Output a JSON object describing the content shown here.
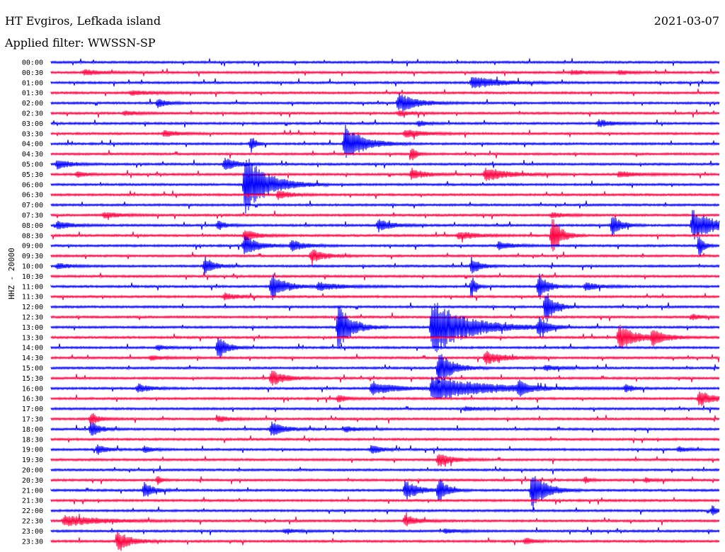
{
  "header": {
    "station": "HT Evgiros, Lefkada island",
    "date": "2021-03-07",
    "filter": "Applied filter: WWSSN-SP",
    "channel": "HHZ - 20000"
  },
  "colors": {
    "even_row": "#0000ff",
    "odd_row": "#ff0040",
    "background": "#ffffff"
  },
  "chart_data": {
    "type": "line",
    "title": "HT Evgiros, Lefkada island",
    "subtitle": "Applied filter: WWSSN-SP",
    "ylabel": "HHZ - 20000",
    "row_labels": [
      "00:00",
      "00:30",
      "01:00",
      "01:30",
      "02:00",
      "02:30",
      "03:00",
      "03:30",
      "04:00",
      "04:30",
      "05:00",
      "05:30",
      "06:00",
      "06:30",
      "07:00",
      "07:30",
      "08:00",
      "08:30",
      "09:00",
      "09:30",
      "10:00",
      "10:30",
      "11:00",
      "11:30",
      "12:00",
      "12:30",
      "13:00",
      "13:30",
      "14:00",
      "14:30",
      "15:00",
      "15:30",
      "16:00",
      "16:30",
      "17:00",
      "17:30",
      "18:00",
      "18:30",
      "19:00",
      "19:30",
      "20:00",
      "20:30",
      "21:00",
      "21:30",
      "22:00",
      "22:30",
      "23:00",
      "23:30"
    ],
    "x_range_minutes": [
      0,
      30
    ],
    "series_colors_alternating": [
      "blue",
      "red"
    ],
    "events": [
      {
        "row": 1,
        "t": 0.05,
        "amp": 4,
        "dur": 0.04
      },
      {
        "row": 1,
        "t": 0.78,
        "amp": 3,
        "dur": 0.04
      },
      {
        "row": 1,
        "t": 0.85,
        "amp": 3,
        "dur": 0.03
      },
      {
        "row": 2,
        "t": 0.63,
        "amp": 9,
        "dur": 0.06
      },
      {
        "row": 3,
        "t": 0.12,
        "amp": 3,
        "dur": 0.05
      },
      {
        "row": 4,
        "t": 0.16,
        "amp": 7,
        "dur": 0.02
      },
      {
        "row": 4,
        "t": 0.52,
        "amp": 14,
        "dur": 0.04
      },
      {
        "row": 5,
        "t": 0.11,
        "amp": 3,
        "dur": 0.03
      },
      {
        "row": 5,
        "t": 0.52,
        "amp": 4,
        "dur": 0.03
      },
      {
        "row": 6,
        "t": 0.55,
        "amp": 4,
        "dur": 0.02
      },
      {
        "row": 6,
        "t": 0.82,
        "amp": 5,
        "dur": 0.03
      },
      {
        "row": 7,
        "t": 0.17,
        "amp": 5,
        "dur": 0.03
      },
      {
        "row": 7,
        "t": 0.53,
        "amp": 6,
        "dur": 0.04
      },
      {
        "row": 8,
        "t": 0.44,
        "amp": 28,
        "dur": 0.04
      },
      {
        "row": 8,
        "t": 0.3,
        "amp": 12,
        "dur": 0.01
      },
      {
        "row": 9,
        "t": 0.54,
        "amp": 12,
        "dur": 0.01
      },
      {
        "row": 10,
        "t": 0.01,
        "amp": 7,
        "dur": 0.03
      },
      {
        "row": 10,
        "t": 0.26,
        "amp": 9,
        "dur": 0.03
      },
      {
        "row": 11,
        "t": 0.04,
        "amp": 4,
        "dur": 0.02
      },
      {
        "row": 11,
        "t": 0.54,
        "amp": 8,
        "dur": 0.03
      },
      {
        "row": 11,
        "t": 0.65,
        "amp": 10,
        "dur": 0.05
      },
      {
        "row": 11,
        "t": 0.85,
        "amp": 4,
        "dur": 0.04
      },
      {
        "row": 12,
        "t": 0.29,
        "amp": 45,
        "dur": 0.05
      },
      {
        "row": 13,
        "t": 0.34,
        "amp": 6,
        "dur": 0.03
      },
      {
        "row": 15,
        "t": 0.08,
        "amp": 4,
        "dur": 0.04
      },
      {
        "row": 15,
        "t": 0.75,
        "amp": 4,
        "dur": 0.03
      },
      {
        "row": 16,
        "t": 0.01,
        "amp": 6,
        "dur": 0.03
      },
      {
        "row": 16,
        "t": 0.25,
        "amp": 6,
        "dur": 0.02
      },
      {
        "row": 16,
        "t": 0.49,
        "amp": 9,
        "dur": 0.03
      },
      {
        "row": 16,
        "t": 0.84,
        "amp": 15,
        "dur": 0.02
      },
      {
        "row": 16,
        "t": 0.96,
        "amp": 22,
        "dur": 0.05
      },
      {
        "row": 17,
        "t": 0.29,
        "amp": 8,
        "dur": 0.03
      },
      {
        "row": 17,
        "t": 0.61,
        "amp": 6,
        "dur": 0.04
      },
      {
        "row": 17,
        "t": 0.75,
        "amp": 30,
        "dur": 0.02
      },
      {
        "row": 18,
        "t": 0.29,
        "amp": 14,
        "dur": 0.03
      },
      {
        "row": 18,
        "t": 0.36,
        "amp": 8,
        "dur": 0.03
      },
      {
        "row": 18,
        "t": 0.67,
        "amp": 6,
        "dur": 0.03
      },
      {
        "row": 18,
        "t": 0.97,
        "amp": 18,
        "dur": 0.01
      },
      {
        "row": 19,
        "t": 0.39,
        "amp": 10,
        "dur": 0.03
      },
      {
        "row": 20,
        "t": 0.01,
        "amp": 4,
        "dur": 0.03
      },
      {
        "row": 20,
        "t": 0.23,
        "amp": 14,
        "dur": 0.02
      },
      {
        "row": 20,
        "t": 0.63,
        "amp": 12,
        "dur": 0.02
      },
      {
        "row": 22,
        "t": 0.33,
        "amp": 20,
        "dur": 0.03
      },
      {
        "row": 22,
        "t": 0.63,
        "amp": 15,
        "dur": 0.01
      },
      {
        "row": 22,
        "t": 0.73,
        "amp": 20,
        "dur": 0.02
      },
      {
        "row": 22,
        "t": 0.4,
        "amp": 6,
        "dur": 0.05
      },
      {
        "row": 22,
        "t": 0.8,
        "amp": 6,
        "dur": 0.03
      },
      {
        "row": 23,
        "t": 0.26,
        "amp": 5,
        "dur": 0.03
      },
      {
        "row": 24,
        "t": 0.74,
        "amp": 25,
        "dur": 0.02
      },
      {
        "row": 25,
        "t": 0.96,
        "amp": 4,
        "dur": 0.02
      },
      {
        "row": 26,
        "t": 0.43,
        "amp": 35,
        "dur": 0.03
      },
      {
        "row": 26,
        "t": 0.57,
        "amp": 40,
        "dur": 0.08
      },
      {
        "row": 26,
        "t": 0.73,
        "amp": 14,
        "dur": 0.02
      },
      {
        "row": 27,
        "t": 0.85,
        "amp": 18,
        "dur": 0.04
      },
      {
        "row": 27,
        "t": 0.9,
        "amp": 10,
        "dur": 0.03
      },
      {
        "row": 28,
        "t": 0.25,
        "amp": 18,
        "dur": 0.02
      },
      {
        "row": 28,
        "t": 0.16,
        "amp": 4,
        "dur": 0.02
      },
      {
        "row": 29,
        "t": 0.65,
        "amp": 10,
        "dur": 0.04
      },
      {
        "row": 29,
        "t": 0.15,
        "amp": 3,
        "dur": 0.03
      },
      {
        "row": 30,
        "t": 0.58,
        "amp": 25,
        "dur": 0.03
      },
      {
        "row": 30,
        "t": 0.74,
        "amp": 4,
        "dur": 0.03
      },
      {
        "row": 31,
        "t": 0.33,
        "amp": 12,
        "dur": 0.03
      },
      {
        "row": 32,
        "t": 0.13,
        "amp": 6,
        "dur": 0.03
      },
      {
        "row": 32,
        "t": 0.48,
        "amp": 10,
        "dur": 0.05
      },
      {
        "row": 32,
        "t": 0.57,
        "amp": 18,
        "dur": 0.12
      },
      {
        "row": 32,
        "t": 0.7,
        "amp": 10,
        "dur": 0.02
      },
      {
        "row": 32,
        "t": 0.86,
        "amp": 5,
        "dur": 0.02
      },
      {
        "row": 33,
        "t": 0.97,
        "amp": 12,
        "dur": 0.03
      },
      {
        "row": 33,
        "t": 0.43,
        "amp": 5,
        "dur": 0.02
      },
      {
        "row": 34,
        "t": 0.62,
        "amp": 3,
        "dur": 0.03
      },
      {
        "row": 35,
        "t": 0.06,
        "amp": 8,
        "dur": 0.02
      },
      {
        "row": 35,
        "t": 0.25,
        "amp": 4,
        "dur": 0.03
      },
      {
        "row": 36,
        "t": 0.06,
        "amp": 12,
        "dur": 0.02
      },
      {
        "row": 36,
        "t": 0.33,
        "amp": 10,
        "dur": 0.03
      },
      {
        "row": 36,
        "t": 0.44,
        "amp": 4,
        "dur": 0.03
      },
      {
        "row": 38,
        "t": 0.07,
        "amp": 7,
        "dur": 0.02
      },
      {
        "row": 38,
        "t": 0.14,
        "amp": 5,
        "dur": 0.02
      },
      {
        "row": 38,
        "t": 0.48,
        "amp": 7,
        "dur": 0.02
      },
      {
        "row": 38,
        "t": 0.94,
        "amp": 4,
        "dur": 0.02
      },
      {
        "row": 39,
        "t": 0.58,
        "amp": 10,
        "dur": 0.03
      },
      {
        "row": 41,
        "t": 0.16,
        "amp": 6,
        "dur": 0.01
      },
      {
        "row": 41,
        "t": 0.8,
        "amp": 5,
        "dur": 0.01
      },
      {
        "row": 41,
        "t": 0.89,
        "amp": 3,
        "dur": 0.02
      },
      {
        "row": 42,
        "t": 0.14,
        "amp": 12,
        "dur": 0.02
      },
      {
        "row": 42,
        "t": 0.53,
        "amp": 14,
        "dur": 0.03
      },
      {
        "row": 42,
        "t": 0.58,
        "amp": 18,
        "dur": 0.02
      },
      {
        "row": 42,
        "t": 0.72,
        "amp": 30,
        "dur": 0.03
      },
      {
        "row": 44,
        "t": 0.99,
        "amp": 8,
        "dur": 0.01
      },
      {
        "row": 45,
        "t": 0.02,
        "amp": 8,
        "dur": 0.08
      },
      {
        "row": 45,
        "t": 0.53,
        "amp": 8,
        "dur": 0.03
      },
      {
        "row": 46,
        "t": 0.35,
        "amp": 3,
        "dur": 0.03
      },
      {
        "row": 46,
        "t": 0.59,
        "amp": 3,
        "dur": 0.03
      },
      {
        "row": 47,
        "t": 0.1,
        "amp": 14,
        "dur": 0.03
      },
      {
        "row": 47,
        "t": 0.71,
        "amp": 5,
        "dur": 0.02
      }
    ]
  }
}
